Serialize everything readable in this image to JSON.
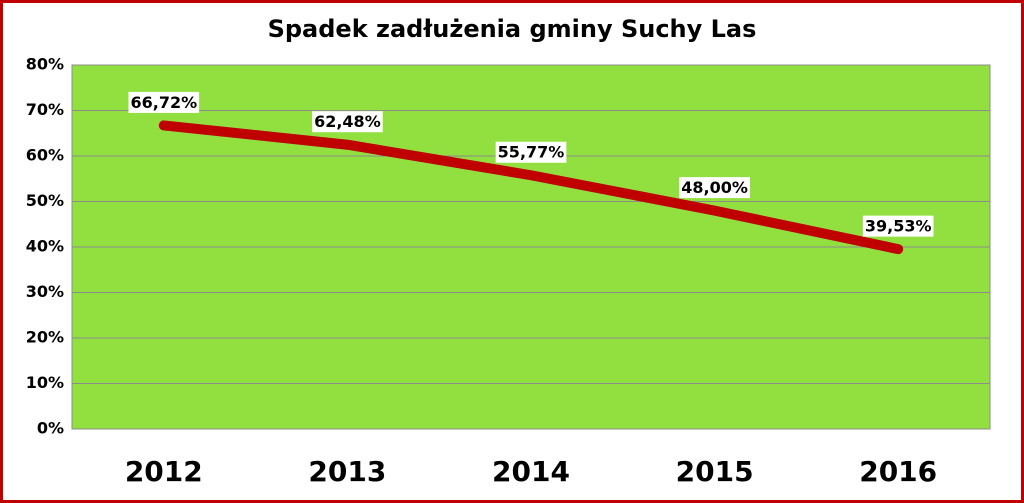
{
  "chart_data": {
    "type": "line",
    "title": "Spadek zadłużenia gminy Suchy Las",
    "categories": [
      "2012",
      "2013",
      "2014",
      "2015",
      "2016"
    ],
    "values": [
      66.72,
      62.48,
      55.77,
      48.0,
      39.53
    ],
    "value_labels": [
      "66,72%",
      "62,48%",
      "55,77%",
      "48,00%",
      "39,53%"
    ],
    "color": "#c00000",
    "plot_color": "#92e03f",
    "ylim": [
      0,
      80
    ],
    "yticks": [
      {
        "value": 0,
        "label": "0%"
      },
      {
        "value": 10,
        "label": "10%"
      },
      {
        "value": 20,
        "label": "20%"
      },
      {
        "value": 30,
        "label": "30%"
      },
      {
        "value": 40,
        "label": "40%"
      },
      {
        "value": 50,
        "label": "50%"
      },
      {
        "value": 60,
        "label": "60%"
      },
      {
        "value": 70,
        "label": "70%"
      },
      {
        "value": 80,
        "label": "80%"
      }
    ],
    "grid": true
  }
}
